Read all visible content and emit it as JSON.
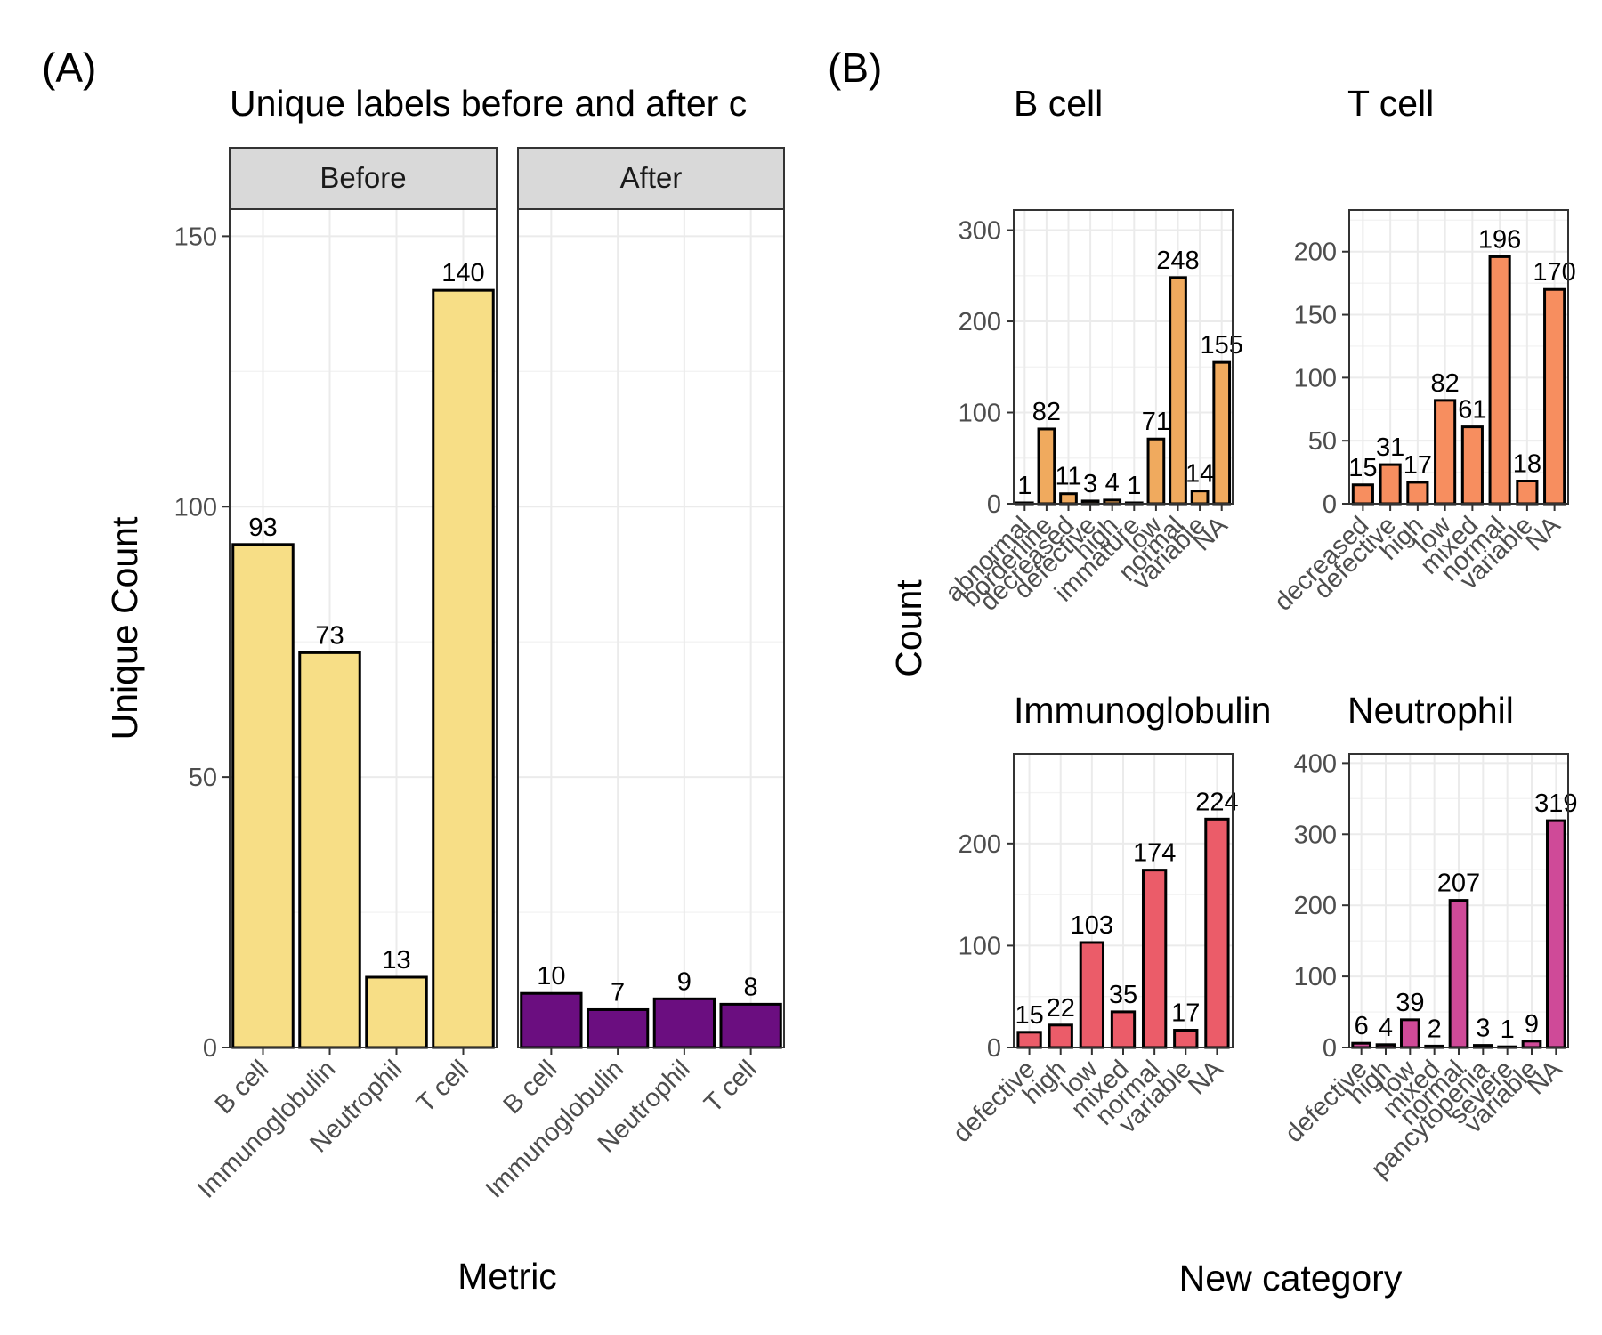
{
  "panel_labels": {
    "a": "(A)",
    "b": "(B)"
  },
  "chart_data": [
    {
      "type": "bar",
      "title": "Unique labels before and after c",
      "xlabel": "Metric",
      "ylabel": "Unique Count",
      "ylim": [
        0,
        155
      ],
      "yticks": [
        0,
        50,
        100,
        150
      ],
      "grid": true,
      "facets": [
        {
          "name": "Before",
          "color": "#F7DE86",
          "categories": [
            "B cell",
            "Immunoglobulin",
            "Neutrophil",
            "T cell"
          ],
          "values": [
            93,
            73,
            13,
            140
          ],
          "labels": [
            "93",
            "73",
            "13",
            "140"
          ]
        },
        {
          "name": "After",
          "color": "#6B0E80",
          "categories": [
            "B cell",
            "Immunoglobulin",
            "Neutrophil",
            "T cell"
          ],
          "values": [
            10,
            7,
            9,
            8
          ],
          "labels": [
            "10",
            "7",
            "9",
            "8"
          ]
        }
      ]
    },
    {
      "type": "bar",
      "xlabel": "New category",
      "ylabel": "Count",
      "grid": true,
      "panels": [
        {
          "name": "B cell",
          "color": "#F0AA5E",
          "ylim": [
            0,
            322
          ],
          "yticks": [
            0,
            100,
            200,
            300
          ],
          "categories": [
            "abnormal",
            "borderline",
            "decreased",
            "defective",
            "high",
            "immature",
            "low",
            "normal",
            "variable",
            "NA"
          ],
          "values": [
            1,
            82,
            11,
            3,
            4,
            1,
            71,
            248,
            14,
            155
          ],
          "labels": [
            "1",
            "82",
            "11",
            "3",
            "4",
            "1",
            "71",
            "248",
            "14",
            "155"
          ]
        },
        {
          "name": "T cell",
          "color": "#F78E5F",
          "ylim": [
            0,
            233
          ],
          "yticks": [
            0,
            50,
            100,
            150,
            200
          ],
          "categories": [
            "decreased",
            "defective",
            "high",
            "low",
            "mixed",
            "normal",
            "variable",
            "NA"
          ],
          "values": [
            15,
            31,
            17,
            82,
            61,
            196,
            18,
            170
          ],
          "labels": [
            "15",
            "31",
            "17",
            "82",
            "61",
            "196",
            "18",
            "170"
          ]
        },
        {
          "name": "Immunoglobulin",
          "color": "#EB5C69",
          "ylim": [
            0,
            288
          ],
          "yticks": [
            0,
            100,
            200
          ],
          "categories": [
            "defective",
            "high",
            "low",
            "mixed",
            "normal",
            "variable",
            "NA"
          ],
          "values": [
            15,
            22,
            103,
            35,
            174,
            17,
            224
          ],
          "labels": [
            "15",
            "22",
            "103",
            "35",
            "174",
            "17",
            "224"
          ]
        },
        {
          "name": "Neutrophil",
          "color": "#CF4A98",
          "ylim": [
            0,
            413
          ],
          "yticks": [
            0,
            100,
            200,
            300,
            400
          ],
          "categories": [
            "defective",
            "high",
            "low",
            "mixed",
            "normal",
            "pancytopenia",
            "severe",
            "variable",
            "NA"
          ],
          "values": [
            6,
            4,
            39,
            2,
            207,
            3,
            1,
            9,
            319
          ],
          "labels": [
            "6",
            "4",
            "39",
            "2",
            "207",
            "3",
            "1",
            "9",
            "319"
          ]
        }
      ]
    }
  ]
}
